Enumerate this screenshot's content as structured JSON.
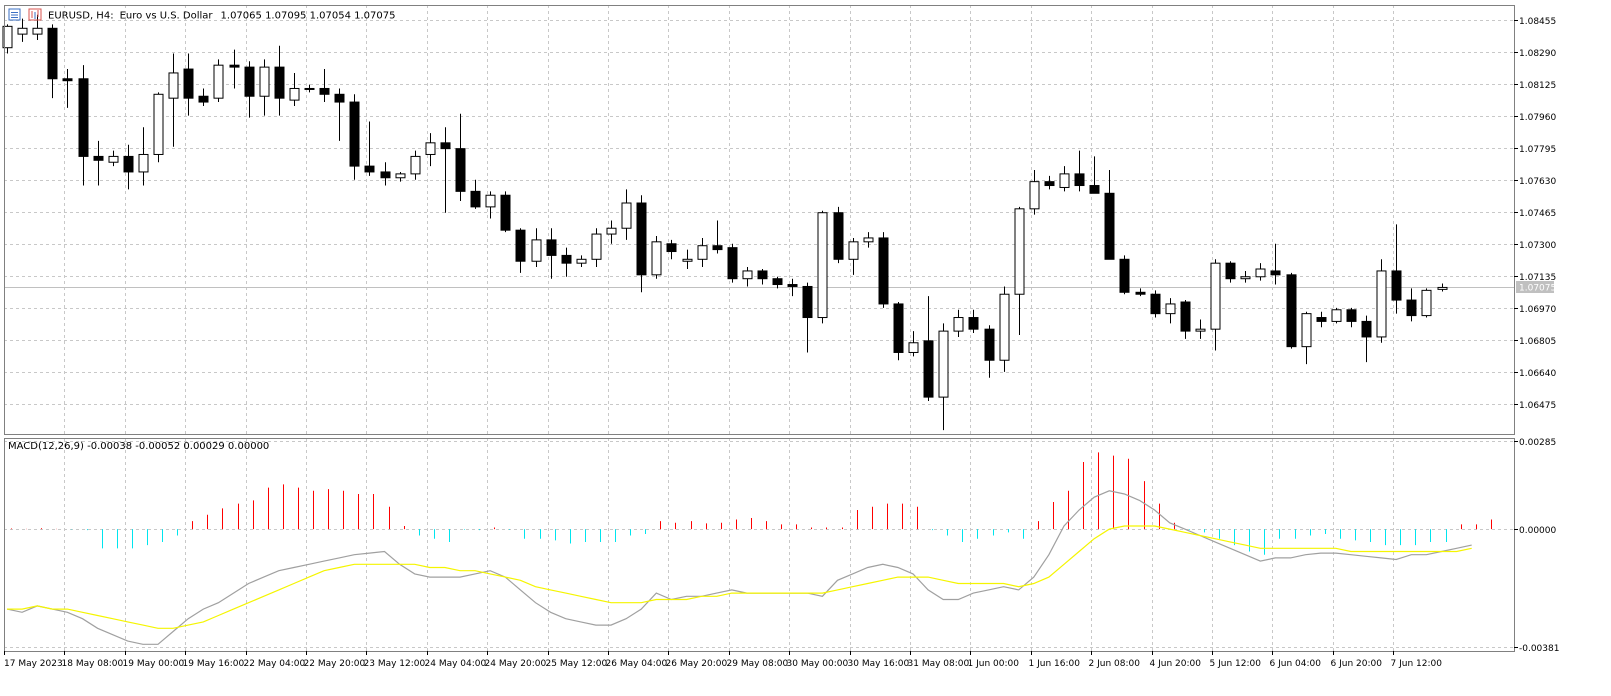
{
  "header": {
    "symbol": "EURUSD, H4:",
    "description": "Euro vs U.S. Dollar",
    "ohlc": "1.07065 1.07095 1.07054 1.07075"
  },
  "colors": {
    "background": "#ffffff",
    "grid": "#c8c8c8",
    "frame": "#808080",
    "candle": "#000000",
    "bid_line": "#c0c0c0",
    "histogram_positive": "#ff0000",
    "histogram_negative": "#00e5ee",
    "macd_line": "#a0a0a0",
    "signal_line": "#f5f500"
  },
  "chart_data": [
    {
      "type": "candlestick",
      "timeframe": "H4",
      "price_axis": {
        "ylim": [
          1.0632,
          1.0853
        ],
        "ticks": [
          "1.08455",
          "1.08290",
          "1.08125",
          "1.07960",
          "1.07795",
          "1.07630",
          "1.07465",
          "1.07300",
          "1.07135",
          "1.06970",
          "1.06805",
          "1.06640",
          "1.06475"
        ]
      },
      "current_price": "1.07075",
      "grid": true,
      "candles": [
        {
          "o": 1.0831,
          "h": 1.0843,
          "l": 1.0828,
          "c": 1.0842
        },
        {
          "o": 1.0838,
          "h": 1.0846,
          "l": 1.0834,
          "c": 1.0841
        },
        {
          "o": 1.0838,
          "h": 1.0848,
          "l": 1.0835,
          "c": 1.0841
        },
        {
          "o": 1.0841,
          "h": 1.0843,
          "l": 1.0805,
          "c": 1.0815
        },
        {
          "o": 1.0815,
          "h": 1.082,
          "l": 1.08,
          "c": 1.0814
        },
        {
          "o": 1.0815,
          "h": 1.0822,
          "l": 1.076,
          "c": 1.0775
        },
        {
          "o": 1.0775,
          "h": 1.0783,
          "l": 1.076,
          "c": 1.0773
        },
        {
          "o": 1.0772,
          "h": 1.0778,
          "l": 1.077,
          "c": 1.0775
        },
        {
          "o": 1.0775,
          "h": 1.0781,
          "l": 1.0758,
          "c": 1.0767
        },
        {
          "o": 1.0767,
          "h": 1.079,
          "l": 1.076,
          "c": 1.0776
        },
        {
          "o": 1.0776,
          "h": 1.0808,
          "l": 1.0772,
          "c": 1.0807
        },
        {
          "o": 1.0805,
          "h": 1.0828,
          "l": 1.078,
          "c": 1.0818
        },
        {
          "o": 1.082,
          "h": 1.0828,
          "l": 1.0796,
          "c": 1.0805
        },
        {
          "o": 1.0806,
          "h": 1.081,
          "l": 1.0801,
          "c": 1.0803
        },
        {
          "o": 1.0805,
          "h": 1.0825,
          "l": 1.0803,
          "c": 1.0822
        },
        {
          "o": 1.0822,
          "h": 1.083,
          "l": 1.081,
          "c": 1.0821
        },
        {
          "o": 1.0821,
          "h": 1.0824,
          "l": 1.0795,
          "c": 1.0806
        },
        {
          "o": 1.0806,
          "h": 1.0825,
          "l": 1.0796,
          "c": 1.0821
        },
        {
          "o": 1.0821,
          "h": 1.0832,
          "l": 1.0796,
          "c": 1.0805
        },
        {
          "o": 1.0804,
          "h": 1.0818,
          "l": 1.0801,
          "c": 1.081
        },
        {
          "o": 1.081,
          "h": 1.0812,
          "l": 1.0808,
          "c": 1.081
        },
        {
          "o": 1.081,
          "h": 1.082,
          "l": 1.0803,
          "c": 1.0807
        },
        {
          "o": 1.0807,
          "h": 1.081,
          "l": 1.0783,
          "c": 1.0803
        },
        {
          "o": 1.0803,
          "h": 1.0807,
          "l": 1.0763,
          "c": 1.077
        },
        {
          "o": 1.077,
          "h": 1.0793,
          "l": 1.0765,
          "c": 1.0767
        },
        {
          "o": 1.0767,
          "h": 1.0772,
          "l": 1.076,
          "c": 1.0764
        },
        {
          "o": 1.0764,
          "h": 1.0767,
          "l": 1.0762,
          "c": 1.0766
        },
        {
          "o": 1.0766,
          "h": 1.0778,
          "l": 1.0763,
          "c": 1.0775
        },
        {
          "o": 1.0776,
          "h": 1.0787,
          "l": 1.077,
          "c": 1.0782
        },
        {
          "o": 1.0782,
          "h": 1.079,
          "l": 1.0746,
          "c": 1.0779
        },
        {
          "o": 1.0779,
          "h": 1.0797,
          "l": 1.0752,
          "c": 1.0757
        },
        {
          "o": 1.0757,
          "h": 1.0763,
          "l": 1.0748,
          "c": 1.0749
        },
        {
          "o": 1.0749,
          "h": 1.0757,
          "l": 1.0743,
          "c": 1.0755
        },
        {
          "o": 1.0755,
          "h": 1.0757,
          "l": 1.0736,
          "c": 1.0737
        },
        {
          "o": 1.0737,
          "h": 1.0738,
          "l": 1.0715,
          "c": 1.0721
        },
        {
          "o": 1.0721,
          "h": 1.0738,
          "l": 1.0718,
          "c": 1.0732
        },
        {
          "o": 1.0732,
          "h": 1.0738,
          "l": 1.0712,
          "c": 1.0724
        },
        {
          "o": 1.0724,
          "h": 1.0728,
          "l": 1.0713,
          "c": 1.072
        },
        {
          "o": 1.072,
          "h": 1.0724,
          "l": 1.0718,
          "c": 1.0722
        },
        {
          "o": 1.0722,
          "h": 1.0738,
          "l": 1.0718,
          "c": 1.0735
        },
        {
          "o": 1.0735,
          "h": 1.0742,
          "l": 1.073,
          "c": 1.0738
        },
        {
          "o": 1.0738,
          "h": 1.0758,
          "l": 1.0732,
          "c": 1.0751
        },
        {
          "o": 1.0751,
          "h": 1.0755,
          "l": 1.0705,
          "c": 1.0714
        },
        {
          "o": 1.0714,
          "h": 1.0734,
          "l": 1.0712,
          "c": 1.0731
        },
        {
          "o": 1.073,
          "h": 1.0732,
          "l": 1.0722,
          "c": 1.0726
        },
        {
          "o": 1.0721,
          "h": 1.0727,
          "l": 1.0717,
          "c": 1.0722
        },
        {
          "o": 1.0722,
          "h": 1.0733,
          "l": 1.0718,
          "c": 1.0729
        },
        {
          "o": 1.0729,
          "h": 1.0742,
          "l": 1.0725,
          "c": 1.0727
        },
        {
          "o": 1.0728,
          "h": 1.073,
          "l": 1.071,
          "c": 1.0712
        },
        {
          "o": 1.0712,
          "h": 1.0718,
          "l": 1.0708,
          "c": 1.0716
        },
        {
          "o": 1.0716,
          "h": 1.0717,
          "l": 1.0709,
          "c": 1.0712
        },
        {
          "o": 1.0712,
          "h": 1.0713,
          "l": 1.0707,
          "c": 1.0709
        },
        {
          "o": 1.0709,
          "h": 1.0712,
          "l": 1.0703,
          "c": 1.0708
        },
        {
          "o": 1.0708,
          "h": 1.071,
          "l": 1.0674,
          "c": 1.0692
        },
        {
          "o": 1.0692,
          "h": 1.0747,
          "l": 1.0689,
          "c": 1.0746
        },
        {
          "o": 1.0746,
          "h": 1.0749,
          "l": 1.072,
          "c": 1.0722
        },
        {
          "o": 1.0722,
          "h": 1.0733,
          "l": 1.0714,
          "c": 1.0731
        },
        {
          "o": 1.0731,
          "h": 1.0736,
          "l": 1.0728,
          "c": 1.0733
        },
        {
          "o": 1.0733,
          "h": 1.0736,
          "l": 1.0697,
          "c": 1.0699
        },
        {
          "o": 1.0699,
          "h": 1.07,
          "l": 1.067,
          "c": 1.0674
        },
        {
          "o": 1.0674,
          "h": 1.0685,
          "l": 1.0672,
          "c": 1.0679
        },
        {
          "o": 1.068,
          "h": 1.0703,
          "l": 1.0649,
          "c": 1.0651
        },
        {
          "o": 1.0651,
          "h": 1.0689,
          "l": 1.0634,
          "c": 1.0685
        },
        {
          "o": 1.0685,
          "h": 1.0696,
          "l": 1.0682,
          "c": 1.0692
        },
        {
          "o": 1.0692,
          "h": 1.0696,
          "l": 1.0684,
          "c": 1.0686
        },
        {
          "o": 1.0686,
          "h": 1.0688,
          "l": 1.0661,
          "c": 1.067
        },
        {
          "o": 1.067,
          "h": 1.0708,
          "l": 1.0664,
          "c": 1.0704
        },
        {
          "o": 1.0704,
          "h": 1.0749,
          "l": 1.0683,
          "c": 1.0748
        },
        {
          "o": 1.0748,
          "h": 1.0768,
          "l": 1.0745,
          "c": 1.0762
        },
        {
          "o": 1.0762,
          "h": 1.0765,
          "l": 1.0758,
          "c": 1.076
        },
        {
          "o": 1.0759,
          "h": 1.077,
          "l": 1.0757,
          "c": 1.0766
        },
        {
          "o": 1.0766,
          "h": 1.0778,
          "l": 1.0757,
          "c": 1.076
        },
        {
          "o": 1.076,
          "h": 1.0775,
          "l": 1.0756,
          "c": 1.0756
        },
        {
          "o": 1.0756,
          "h": 1.0768,
          "l": 1.0722,
          "c": 1.0722
        },
        {
          "o": 1.0722,
          "h": 1.0724,
          "l": 1.0704,
          "c": 1.0705
        },
        {
          "o": 1.0705,
          "h": 1.0707,
          "l": 1.0703,
          "c": 1.0704
        },
        {
          "o": 1.0704,
          "h": 1.0706,
          "l": 1.0692,
          "c": 1.0694
        },
        {
          "o": 1.0694,
          "h": 1.0702,
          "l": 1.0689,
          "c": 1.0699
        },
        {
          "o": 1.07,
          "h": 1.0701,
          "l": 1.0681,
          "c": 1.0685
        },
        {
          "o": 1.0685,
          "h": 1.0691,
          "l": 1.0681,
          "c": 1.0686
        },
        {
          "o": 1.0686,
          "h": 1.0722,
          "l": 1.0675,
          "c": 1.072
        },
        {
          "o": 1.072,
          "h": 1.0721,
          "l": 1.071,
          "c": 1.0712
        },
        {
          "o": 1.0712,
          "h": 1.0716,
          "l": 1.071,
          "c": 1.0713
        },
        {
          "o": 1.0713,
          "h": 1.072,
          "l": 1.0711,
          "c": 1.0717
        },
        {
          "o": 1.0716,
          "h": 1.073,
          "l": 1.0709,
          "c": 1.0714
        },
        {
          "o": 1.0714,
          "h": 1.0715,
          "l": 1.0676,
          "c": 1.0677
        },
        {
          "o": 1.0677,
          "h": 1.0695,
          "l": 1.0668,
          "c": 1.0694
        },
        {
          "o": 1.0692,
          "h": 1.0695,
          "l": 1.0687,
          "c": 1.069
        },
        {
          "o": 1.069,
          "h": 1.0697,
          "l": 1.0689,
          "c": 1.0696
        },
        {
          "o": 1.0696,
          "h": 1.0697,
          "l": 1.0687,
          "c": 1.069
        },
        {
          "o": 1.069,
          "h": 1.0693,
          "l": 1.0669,
          "c": 1.0682
        },
        {
          "o": 1.0682,
          "h": 1.0722,
          "l": 1.0679,
          "c": 1.0716
        },
        {
          "o": 1.0716,
          "h": 1.074,
          "l": 1.0694,
          "c": 1.0701
        },
        {
          "o": 1.0701,
          "h": 1.0707,
          "l": 1.069,
          "c": 1.0693
        },
        {
          "o": 1.0693,
          "h": 1.0707,
          "l": 1.0692,
          "c": 1.0706
        },
        {
          "o": 1.07065,
          "h": 1.07095,
          "l": 1.07054,
          "c": 1.07075
        }
      ],
      "x_ticks": [
        {
          "index": 0,
          "label": "17 May 2023"
        },
        {
          "index": 4,
          "label": "18 May 08:00"
        },
        {
          "index": 8,
          "label": "19 May 00:00"
        },
        {
          "index": 12,
          "label": "19 May 16:00"
        },
        {
          "index": 16,
          "label": "22 May 04:00"
        },
        {
          "index": 20,
          "label": "22 May 20:00"
        },
        {
          "index": 24,
          "label": "23 May 12:00"
        },
        {
          "index": 28,
          "label": "24 May 04:00"
        },
        {
          "index": 32,
          "label": "24 May 20:00"
        },
        {
          "index": 36,
          "label": "25 May 12:00"
        },
        {
          "index": 40,
          "label": "26 May 04:00"
        },
        {
          "index": 44,
          "label": "26 May 20:00"
        },
        {
          "index": 48,
          "label": "29 May 08:00"
        },
        {
          "index": 52,
          "label": "30 May 00:00"
        },
        {
          "index": 56,
          "label": "30 May 16:00"
        },
        {
          "index": 60,
          "label": "31 May 08:00"
        },
        {
          "index": 64,
          "label": "1 Jun 00:00"
        },
        {
          "index": 68,
          "label": "1 Jun 16:00"
        },
        {
          "index": 72,
          "label": "2 Jun 08:00"
        },
        {
          "index": 76,
          "label": "4 Jun 20:00"
        },
        {
          "index": 80,
          "label": "5 Jun 12:00"
        },
        {
          "index": 84,
          "label": "6 Jun 04:00"
        },
        {
          "index": 88,
          "label": "6 Jun 20:00"
        },
        {
          "index": 92,
          "label": "7 Jun 12:00"
        }
      ]
    },
    {
      "type": "macd",
      "label": "MACD(12,26,9) -0.00038 -0.00052 0.00029 0.00000",
      "ylim": [
        -0.00381,
        0.00285
      ],
      "ticks": [
        "0.00285",
        "0.00000",
        "-0.00381"
      ],
      "grid": true,
      "histogram": [
        2e-05,
        1e-05,
        3e-05,
        1e-05,
        -1e-05,
        -3e-05,
        -0.0006,
        -0.0006,
        -0.0006,
        -0.0005,
        -0.0004,
        -0.0002,
        0.00025,
        0.00045,
        0.00065,
        0.0008,
        0.0009,
        0.0013,
        0.0014,
        0.0013,
        0.0012,
        0.00125,
        0.0012,
        0.0011,
        0.0011,
        0.0007,
        0.0001,
        -0.0002,
        -0.0003,
        -0.0004,
        -2e-05,
        -3e-05,
        5e-05,
        -2e-05,
        -0.0003,
        -0.0003,
        -0.00035,
        -0.00045,
        -0.0004,
        -0.0004,
        -0.0004,
        -0.0002,
        -0.00015,
        0.00025,
        0.0002,
        0.00025,
        0.00018,
        0.0002,
        0.0003,
        0.00035,
        0.00025,
        0.00015,
        0.00015,
        5e-05,
        5e-05,
        5e-05,
        0.0006,
        0.0007,
        0.0008,
        0.0008,
        0.0007,
        -3e-05,
        -0.0002,
        -0.0004,
        -0.0003,
        -0.0002,
        -0.0001,
        -0.0003,
        0.00025,
        0.00085,
        0.0012,
        0.0021,
        0.0024,
        0.0023,
        0.0022,
        0.0015,
        0.0008,
        0.0002,
        -2e-05,
        -0.0001,
        -0.0003,
        -0.0005,
        -0.0007,
        -0.0008,
        -0.0003,
        -0.0003,
        -0.0002,
        -0.00015,
        -0.0003,
        -0.00035,
        -0.0004,
        -0.0005,
        -0.0005,
        -0.0005,
        -0.0004,
        -0.0004,
        0.00015,
        0.00015,
        0.0003
      ],
      "macd_line": [
        -0.0025,
        -0.0026,
        -0.0024,
        -0.0025,
        -0.0026,
        -0.0028,
        -0.0031,
        -0.0033,
        -0.0035,
        -0.0036,
        -0.0036,
        -0.0032,
        -0.0028,
        -0.0025,
        -0.0023,
        -0.002,
        -0.0017,
        -0.0015,
        -0.0013,
        -0.0012,
        -0.0011,
        -0.001,
        -0.0009,
        -0.0008,
        -0.00075,
        -0.0007,
        -0.0011,
        -0.0014,
        -0.0015,
        -0.0015,
        -0.0015,
        -0.0014,
        -0.0013,
        -0.0015,
        -0.0019,
        -0.0023,
        -0.0026,
        -0.0028,
        -0.0029,
        -0.003,
        -0.003,
        -0.0028,
        -0.0025,
        -0.002,
        -0.0022,
        -0.0021,
        -0.0021,
        -0.002,
        -0.0019,
        -0.002,
        -0.002,
        -0.002,
        -0.002,
        -0.002,
        -0.0021,
        -0.0016,
        -0.0014,
        -0.0012,
        -0.0011,
        -0.0012,
        -0.0014,
        -0.0019,
        -0.0022,
        -0.0022,
        -0.002,
        -0.0019,
        -0.0018,
        -0.0019,
        -0.0015,
        -0.0008,
        0.0001,
        0.0006,
        0.001,
        0.0012,
        0.0011,
        0.0009,
        0.0006,
        0.0002,
        0.0,
        -0.0002,
        -0.0004,
        -0.0006,
        -0.0008,
        -0.001,
        -0.0009,
        -0.0009,
        -0.0008,
        -0.00075,
        -0.00075,
        -0.0008,
        -0.00085,
        -0.0009,
        -0.00095,
        -0.0008,
        -0.0008,
        -0.0007,
        -0.0006,
        -0.0005
      ],
      "signal_line": [
        -0.0025,
        -0.0025,
        -0.0024,
        -0.0025,
        -0.0025,
        -0.0026,
        -0.0027,
        -0.0028,
        -0.0029,
        -0.003,
        -0.0031,
        -0.0031,
        -0.003,
        -0.0029,
        -0.0027,
        -0.0025,
        -0.0023,
        -0.0021,
        -0.0019,
        -0.0017,
        -0.0015,
        -0.0013,
        -0.0012,
        -0.0011,
        -0.0011,
        -0.0011,
        -0.0011,
        -0.0011,
        -0.0012,
        -0.0012,
        -0.0013,
        -0.0013,
        -0.0014,
        -0.0015,
        -0.0016,
        -0.0018,
        -0.0019,
        -0.002,
        -0.0021,
        -0.0022,
        -0.0023,
        -0.0023,
        -0.0023,
        -0.0022,
        -0.0022,
        -0.0022,
        -0.0021,
        -0.0021,
        -0.002,
        -0.002,
        -0.002,
        -0.002,
        -0.002,
        -0.002,
        -0.002,
        -0.0019,
        -0.0018,
        -0.0017,
        -0.0016,
        -0.0015,
        -0.0015,
        -0.0015,
        -0.0016,
        -0.0017,
        -0.0017,
        -0.0017,
        -0.0017,
        -0.0018,
        -0.0017,
        -0.0015,
        -0.0011,
        -0.0007,
        -0.0003,
        0.0,
        0.0001,
        0.0001,
        0.0001,
        0.0,
        -0.0001,
        -0.0002,
        -0.0003,
        -0.0004,
        -0.0005,
        -0.0006,
        -0.0006,
        -0.0006,
        -0.0006,
        -0.0006,
        -0.0006,
        -0.0007,
        -0.0007,
        -0.0007,
        -0.0007,
        -0.0007,
        -0.0007,
        -0.0007,
        -0.0007,
        -0.0006
      ]
    }
  ]
}
